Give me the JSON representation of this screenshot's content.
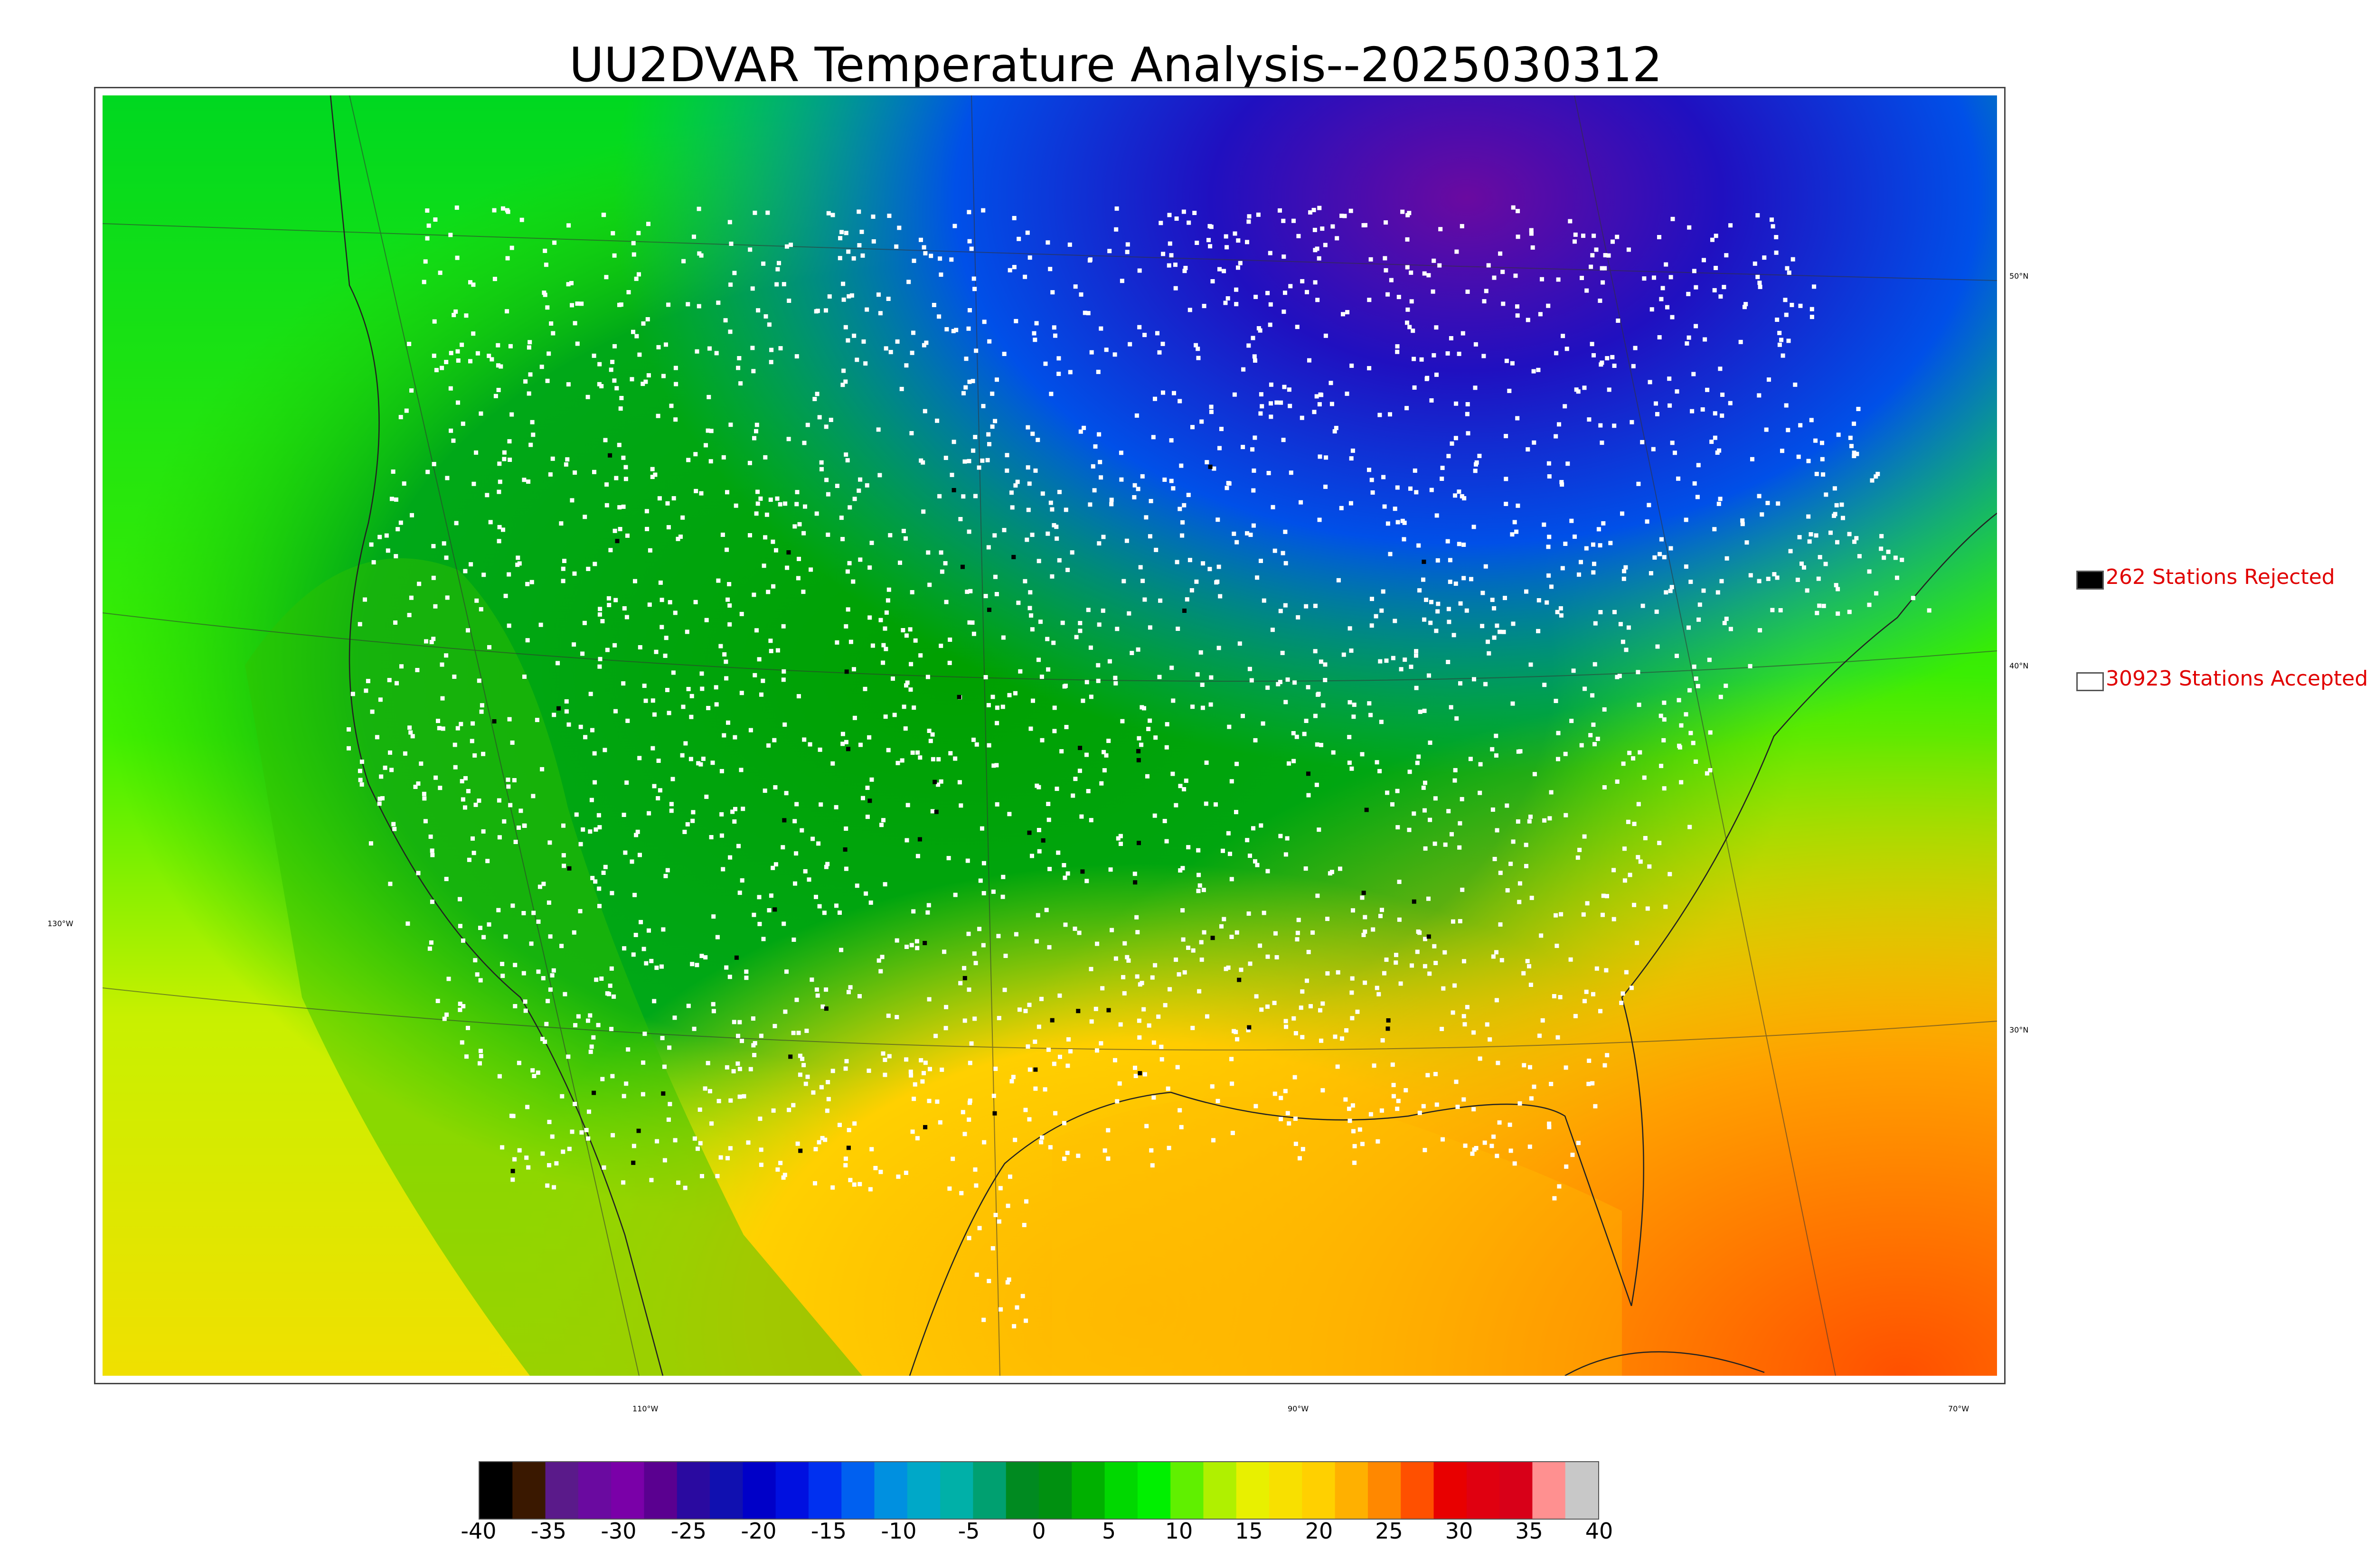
{
  "title": "UU2DVAR Temperature Analysis--2025030312",
  "map": {
    "longitude_labels": [
      "110°W",
      "90°W",
      "70°W"
    ],
    "latitude_labels": [
      "50°N",
      "40°N",
      "30°N"
    ],
    "left_label": "130°W"
  },
  "legend": {
    "rejected": {
      "label": "262 Stations Rejected",
      "color": "#000000"
    },
    "accepted": {
      "label": "30923 Stations Accepted",
      "color": "#ffffff"
    },
    "text_color": "#e00000"
  },
  "colorbar": {
    "min": -40,
    "max": 40,
    "ticks": [
      "-40",
      "-35",
      "-30",
      "-25",
      "-20",
      "-15",
      "-10",
      "-5",
      "0",
      "5",
      "10",
      "15",
      "20",
      "25",
      "30",
      "35",
      "40"
    ],
    "colors": [
      "#000000",
      "#3a1800",
      "#5a1a8a",
      "#6a0aa0",
      "#7a00a8",
      "#5a0090",
      "#2a0aa0",
      "#1010b0",
      "#0000c8",
      "#0010e0",
      "#0030f0",
      "#0060f0",
      "#0090e0",
      "#00a8c8",
      "#00b0a8",
      "#00a070",
      "#008a20",
      "#009010",
      "#00b000",
      "#00d800",
      "#00f000",
      "#60f000",
      "#b0f000",
      "#e8f000",
      "#f8e000",
      "#ffd000",
      "#ffb000",
      "#ff8800",
      "#ff5000",
      "#e80000",
      "#e00010",
      "#d80018",
      "#ff9090",
      "#c8c8c8"
    ]
  }
}
